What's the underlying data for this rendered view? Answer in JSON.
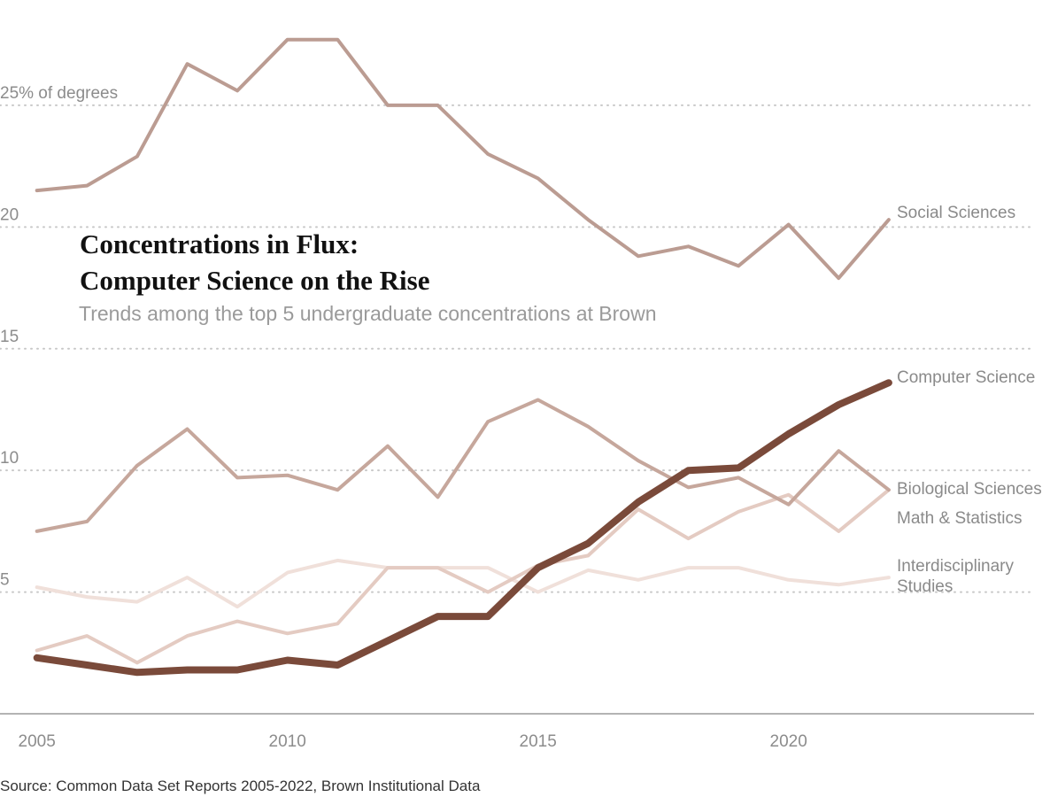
{
  "chart_data": {
    "type": "line",
    "title": [
      "Concentrations in Flux:",
      "Computer Science on the Rise"
    ],
    "subtitle": "Trends among the top 5 undergraduate concentrations at Brown",
    "source": "Source: Common Data Set Reports 2005-2022, Brown Institutional Data",
    "xlabel": "",
    "ylabel": "",
    "x_ticks": [
      {
        "value": 2005,
        "label": "2005"
      },
      {
        "value": 2010,
        "label": "2010"
      },
      {
        "value": 2015,
        "label": "2015"
      },
      {
        "value": 2020,
        "label": "2020"
      }
    ],
    "y_ticks": [
      {
        "value": 25,
        "label": "25% of degrees"
      },
      {
        "value": 20,
        "label": "20"
      },
      {
        "value": 15,
        "label": "15"
      },
      {
        "value": 10,
        "label": "10"
      },
      {
        "value": 5,
        "label": "5"
      }
    ],
    "xlim": [
      2004.9,
      2024.9
    ],
    "ylim": [
      0,
      28.6
    ],
    "grid": "horizontal dotted",
    "x": [
      2005,
      2006,
      2007,
      2008,
      2009,
      2010,
      2011,
      2012,
      2013,
      2014,
      2015,
      2016,
      2017,
      2018,
      2019,
      2020,
      2021,
      2022
    ],
    "series": [
      {
        "name": "Interdisciplinary Studies",
        "label_lines": [
          "Interdisciplinary",
          "Studies"
        ],
        "color": "#f0e0da",
        "width": 4,
        "values": [
          5.2,
          4.8,
          4.6,
          5.6,
          4.4,
          5.8,
          6.3,
          6.0,
          6.0,
          6.0,
          5.0,
          5.9,
          5.5,
          6.0,
          6.0,
          5.5,
          5.3,
          5.6
        ]
      },
      {
        "name": "Math & Statistics",
        "label_lines": [
          "Math & Statistics"
        ],
        "color": "#e4cbc2",
        "width": 4,
        "values": [
          2.6,
          3.2,
          2.1,
          3.2,
          3.8,
          3.3,
          3.7,
          6.0,
          6.0,
          5.0,
          6.1,
          6.5,
          8.4,
          7.2,
          8.3,
          9.0,
          7.5,
          9.2
        ]
      },
      {
        "name": "Biological Sciences",
        "label_lines": [
          "Biological Sciences"
        ],
        "color": "#c6a79c",
        "width": 4,
        "values": [
          7.5,
          7.9,
          10.2,
          11.7,
          9.7,
          9.8,
          9.2,
          11.0,
          8.9,
          12.0,
          12.9,
          11.8,
          10.4,
          9.3,
          9.7,
          8.6,
          10.8,
          9.2
        ]
      },
      {
        "name": "Social Sciences",
        "label_lines": [
          "Social Sciences"
        ],
        "color": "#bb9c92",
        "width": 4,
        "values": [
          21.5,
          21.7,
          22.9,
          26.7,
          25.6,
          27.7,
          27.7,
          25.0,
          25.0,
          23.0,
          22.0,
          20.3,
          18.8,
          19.2,
          18.4,
          20.1,
          17.9,
          20.3
        ]
      },
      {
        "name": "Computer Science",
        "label_lines": [
          "Computer Science"
        ],
        "color": "#7a4a3a",
        "width": 8,
        "values": [
          2.3,
          2.0,
          1.7,
          1.8,
          1.8,
          2.2,
          2.0,
          3.0,
          4.0,
          4.0,
          6.0,
          7.0,
          8.7,
          10.0,
          10.1,
          11.5,
          12.7,
          13.6
        ]
      }
    ]
  }
}
